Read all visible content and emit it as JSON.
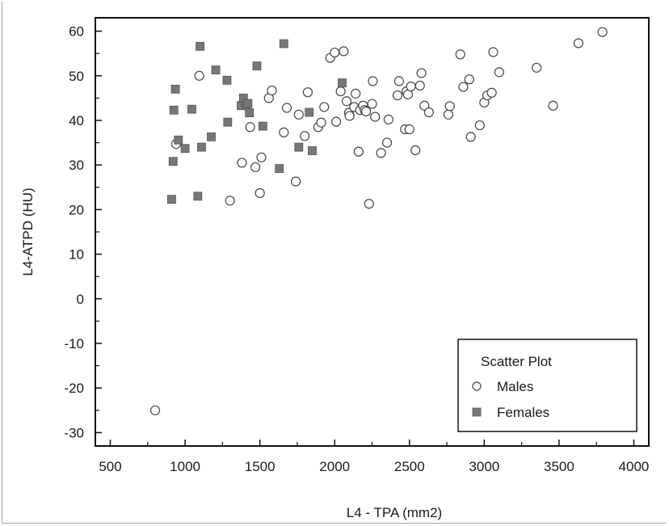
{
  "chart_data": {
    "type": "scatter",
    "title": "",
    "xlabel": "L4 - TPA (mm2)",
    "ylabel": "L4-ATPD (HU)",
    "xlim": [
      400,
      4100
    ],
    "ylim": [
      -33,
      63
    ],
    "x_ticks": [
      500,
      1000,
      1500,
      2000,
      2500,
      3000,
      3500,
      4000
    ],
    "y_ticks": [
      -30,
      -20,
      -10,
      0,
      10,
      20,
      30,
      40,
      50,
      60
    ],
    "grid": false,
    "legend": {
      "title": "Scatter Plot",
      "position": "bottom-right"
    },
    "series": [
      {
        "name": "Males",
        "marker": "circle-open",
        "color": "#444444",
        "points": [
          [
            800,
            -25
          ],
          [
            940,
            34.7
          ],
          [
            1095,
            50
          ],
          [
            1300,
            22
          ],
          [
            1380,
            30.5
          ],
          [
            1435,
            38.5
          ],
          [
            1470,
            29.5
          ],
          [
            1500,
            23.7
          ],
          [
            1510,
            31.7
          ],
          [
            1560,
            45
          ],
          [
            1580,
            46.7
          ],
          [
            1660,
            37.3
          ],
          [
            1680,
            42.8
          ],
          [
            1740,
            26.3
          ],
          [
            1760,
            41.3
          ],
          [
            1800,
            36.5
          ],
          [
            1820,
            46.3
          ],
          [
            1890,
            38.5
          ],
          [
            1910,
            39.5
          ],
          [
            1930,
            43
          ],
          [
            1970,
            54
          ],
          [
            2000,
            55.2
          ],
          [
            2010,
            39.7
          ],
          [
            2040,
            46.5
          ],
          [
            2060,
            55.5
          ],
          [
            2080,
            44.3
          ],
          [
            2095,
            41.7
          ],
          [
            2100,
            41
          ],
          [
            2130,
            43
          ],
          [
            2140,
            46
          ],
          [
            2160,
            33
          ],
          [
            2170,
            42.3
          ],
          [
            2190,
            43.3
          ],
          [
            2200,
            42.3
          ],
          [
            2210,
            42
          ],
          [
            2230,
            21.3
          ],
          [
            2250,
            43.7
          ],
          [
            2255,
            48.8
          ],
          [
            2270,
            40.8
          ],
          [
            2310,
            32.7
          ],
          [
            2350,
            35
          ],
          [
            2360,
            40.2
          ],
          [
            2420,
            45.6
          ],
          [
            2430,
            48.8
          ],
          [
            2470,
            38
          ],
          [
            2480,
            46.5
          ],
          [
            2490,
            45.8
          ],
          [
            2500,
            38
          ],
          [
            2510,
            47.6
          ],
          [
            2540,
            33.3
          ],
          [
            2570,
            47.8
          ],
          [
            2580,
            50.6
          ],
          [
            2600,
            43.3
          ],
          [
            2630,
            41.8
          ],
          [
            2760,
            41.3
          ],
          [
            2770,
            43.2
          ],
          [
            2840,
            54.8
          ],
          [
            2860,
            47.5
          ],
          [
            2900,
            49.2
          ],
          [
            2910,
            36.3
          ],
          [
            2970,
            38.9
          ],
          [
            3000,
            44
          ],
          [
            3020,
            45.6
          ],
          [
            3050,
            46.2
          ],
          [
            3060,
            55.3
          ],
          [
            3100,
            50.8
          ],
          [
            3350,
            51.8
          ],
          [
            3460,
            43.3
          ],
          [
            3630,
            57.3
          ],
          [
            3790,
            59.8
          ]
        ]
      },
      {
        "name": "Females",
        "marker": "square-filled",
        "color": "#777777",
        "points": [
          [
            910,
            22.3
          ],
          [
            920,
            30.8
          ],
          [
            925,
            42.3
          ],
          [
            935,
            47
          ],
          [
            955,
            35.6
          ],
          [
            1000,
            33.7
          ],
          [
            1045,
            42.5
          ],
          [
            1085,
            23
          ],
          [
            1100,
            56.6
          ],
          [
            1110,
            34
          ],
          [
            1175,
            36.3
          ],
          [
            1205,
            51.3
          ],
          [
            1280,
            49
          ],
          [
            1285,
            39.6
          ],
          [
            1375,
            43.3
          ],
          [
            1390,
            45
          ],
          [
            1410,
            43.3
          ],
          [
            1420,
            43.8
          ],
          [
            1430,
            41.7
          ],
          [
            1480,
            52.2
          ],
          [
            1520,
            38.7
          ],
          [
            1630,
            29.2
          ],
          [
            1660,
            57.2
          ],
          [
            1760,
            34
          ],
          [
            1830,
            41.8
          ],
          [
            1850,
            33.2
          ],
          [
            2050,
            48.4
          ]
        ]
      }
    ]
  }
}
